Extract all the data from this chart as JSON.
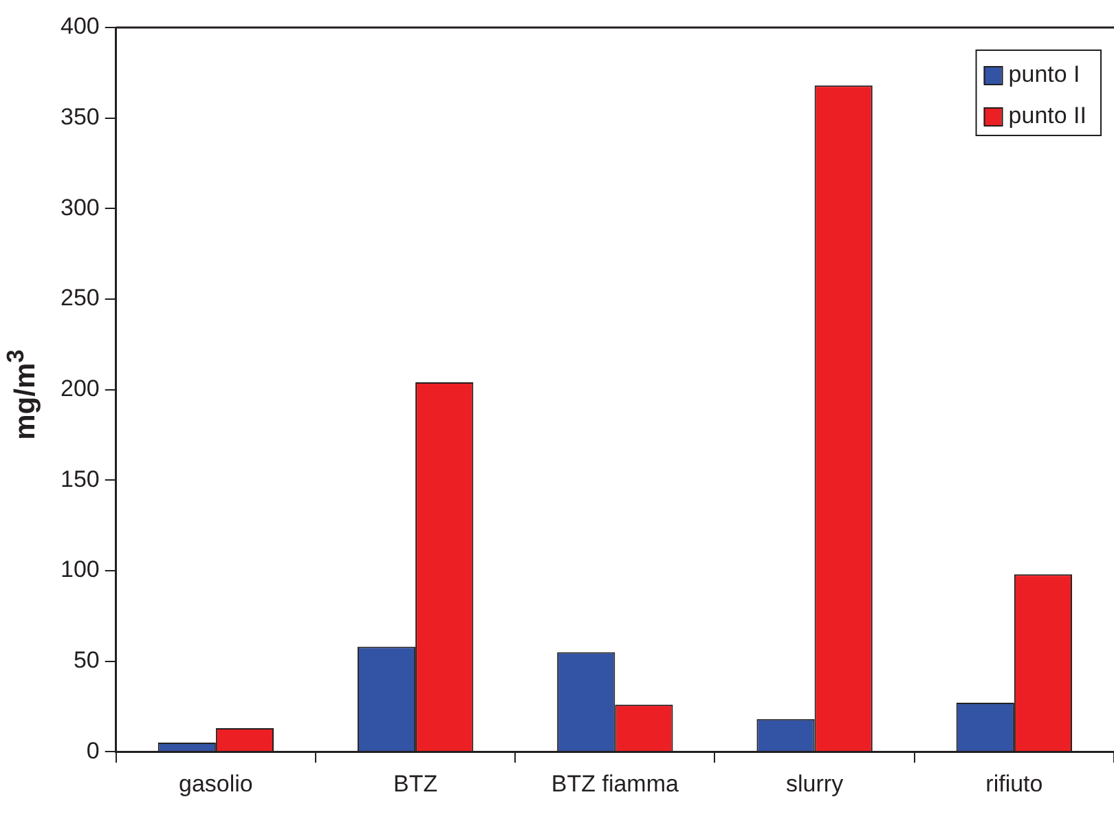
{
  "chart_data": {
    "type": "bar",
    "ylabel": "mg/m$^{3}$",
    "categories": [
      "gasolio",
      "BTZ",
      "BTZ fiamma",
      "slurry",
      "rifiuto"
    ],
    "series": [
      {
        "name": "punto I",
        "color": "#3353a4",
        "values": [
          5,
          58,
          55,
          18,
          27
        ]
      },
      {
        "name": "punto II",
        "color": "#ec2024",
        "values": [
          13,
          204,
          26,
          368,
          98
        ]
      }
    ],
    "ylim": [
      0,
      400
    ],
    "yticks": [
      0,
      50,
      100,
      150,
      200,
      250,
      300,
      350,
      400
    ],
    "grid": false,
    "legend": "top right"
  }
}
